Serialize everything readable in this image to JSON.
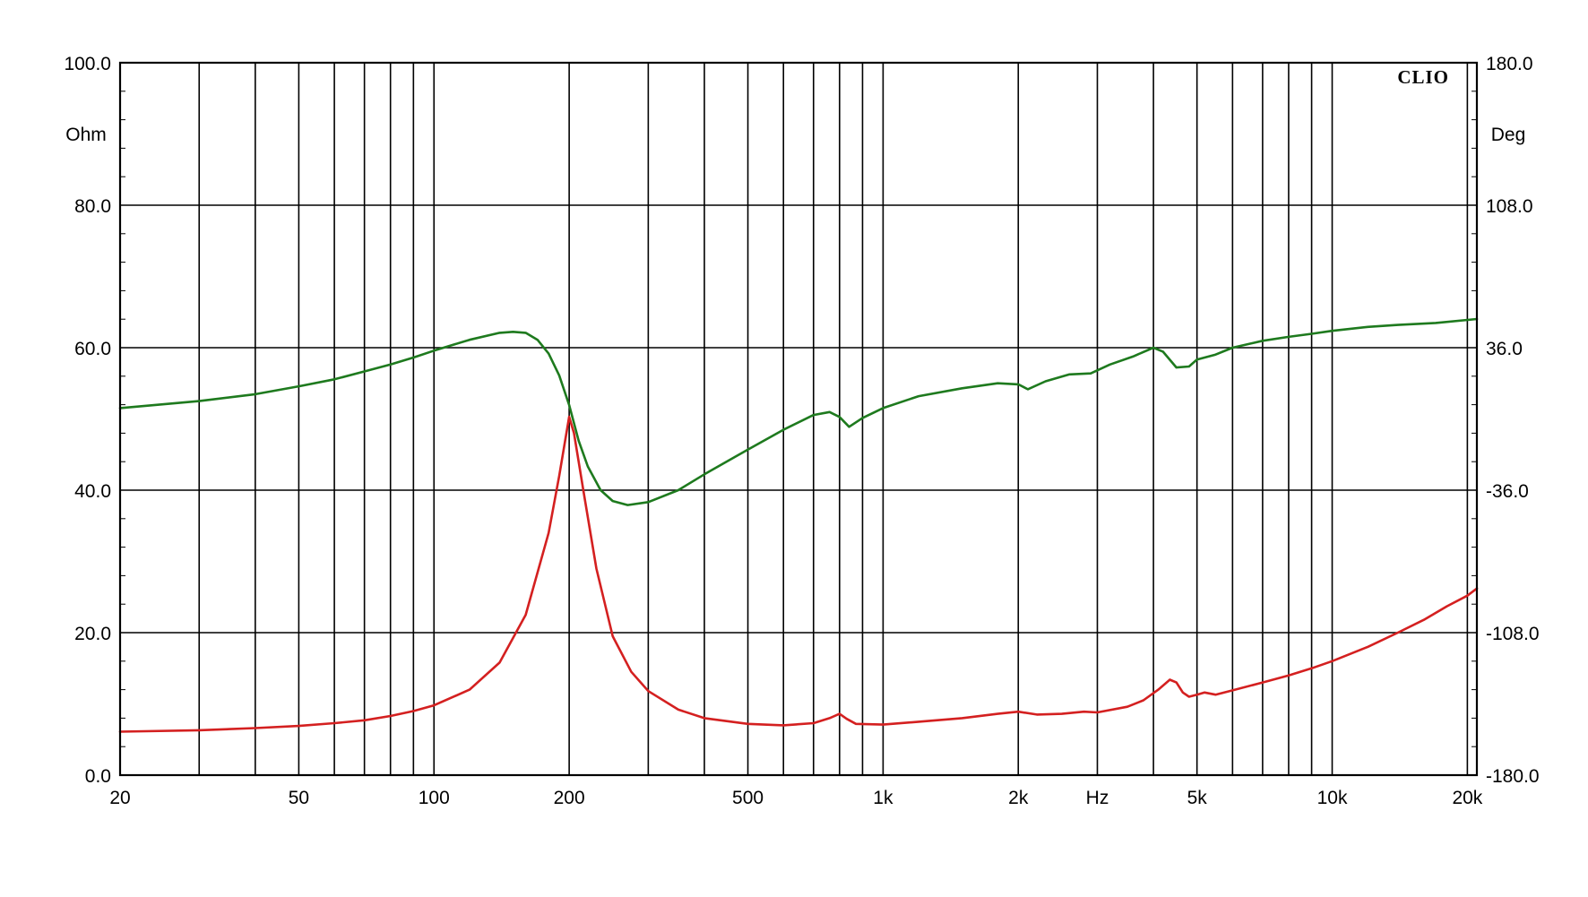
{
  "chart_data": {
    "type": "line",
    "x_scale": "log",
    "xlim": [
      20,
      21000
    ],
    "x_ticks": [
      {
        "value": 20,
        "label": "20"
      },
      {
        "value": 50,
        "label": "50"
      },
      {
        "value": 100,
        "label": "100"
      },
      {
        "value": 200,
        "label": "200"
      },
      {
        "value": 500,
        "label": "500"
      },
      {
        "value": 1000,
        "label": "1k"
      },
      {
        "value": 2000,
        "label": "2k"
      },
      {
        "value": 3000,
        "label": "Hz"
      },
      {
        "value": 5000,
        "label": "5k"
      },
      {
        "value": 10000,
        "label": "10k"
      },
      {
        "value": 20000,
        "label": "20k"
      }
    ],
    "x_gridlines": [
      30,
      40,
      50,
      60,
      70,
      80,
      90,
      100,
      200,
      300,
      400,
      500,
      600,
      700,
      800,
      900,
      1000,
      2000,
      3000,
      4000,
      5000,
      6000,
      7000,
      8000,
      9000,
      10000,
      20000
    ],
    "y_left": {
      "unit": "Ohm",
      "ylim": [
        0,
        100
      ],
      "ticks": [
        {
          "value": 0,
          "label": "0.0"
        },
        {
          "value": 20,
          "label": "20.0"
        },
        {
          "value": 40,
          "label": "40.0"
        },
        {
          "value": 60,
          "label": "60.0"
        },
        {
          "value": 80,
          "label": "80.0"
        },
        {
          "value": 100,
          "label": "100.0"
        }
      ]
    },
    "y_right": {
      "unit": "Deg",
      "ylim": [
        -180,
        180
      ],
      "ticks": [
        {
          "value": -180,
          "label": "-180.0"
        },
        {
          "value": -108,
          "label": "-108.0"
        },
        {
          "value": -36,
          "label": "-36.0"
        },
        {
          "value": 36,
          "label": "36.0"
        },
        {
          "value": 108,
          "label": "108.0"
        },
        {
          "value": 180,
          "label": "180.0"
        }
      ]
    },
    "grid": true,
    "brand_label": "CLIO",
    "series": [
      {
        "color": "#d42020",
        "axis": "left",
        "points": [
          [
            20,
            6.1
          ],
          [
            30,
            6.3
          ],
          [
            40,
            6.6
          ],
          [
            50,
            6.9
          ],
          [
            60,
            7.3
          ],
          [
            70,
            7.7
          ],
          [
            80,
            8.3
          ],
          [
            90,
            9.0
          ],
          [
            100,
            9.8
          ],
          [
            120,
            12.0
          ],
          [
            140,
            15.8
          ],
          [
            160,
            22.5
          ],
          [
            180,
            34.0
          ],
          [
            190,
            42.0
          ],
          [
            200,
            50.3
          ],
          [
            205,
            48.0
          ],
          [
            215,
            40.0
          ],
          [
            230,
            29.0
          ],
          [
            250,
            19.5
          ],
          [
            275,
            14.5
          ],
          [
            300,
            11.8
          ],
          [
            350,
            9.2
          ],
          [
            400,
            8.0
          ],
          [
            500,
            7.2
          ],
          [
            600,
            7.0
          ],
          [
            700,
            7.3
          ],
          [
            760,
            8.0
          ],
          [
            800,
            8.6
          ],
          [
            830,
            7.9
          ],
          [
            870,
            7.2
          ],
          [
            1000,
            7.1
          ],
          [
            1200,
            7.5
          ],
          [
            1500,
            8.0
          ],
          [
            1800,
            8.6
          ],
          [
            2000,
            8.9
          ],
          [
            2200,
            8.5
          ],
          [
            2500,
            8.6
          ],
          [
            2800,
            8.9
          ],
          [
            3000,
            8.8
          ],
          [
            3500,
            9.6
          ],
          [
            3800,
            10.5
          ],
          [
            4100,
            12.0
          ],
          [
            4350,
            13.4
          ],
          [
            4500,
            13.0
          ],
          [
            4650,
            11.6
          ],
          [
            4800,
            11.0
          ],
          [
            5000,
            11.3
          ],
          [
            5200,
            11.6
          ],
          [
            5500,
            11.3
          ],
          [
            6000,
            11.9
          ],
          [
            7000,
            13.0
          ],
          [
            8000,
            14.0
          ],
          [
            9000,
            15.0
          ],
          [
            10000,
            16.0
          ],
          [
            12000,
            18.0
          ],
          [
            14000,
            20.0
          ],
          [
            16000,
            21.8
          ],
          [
            18000,
            23.7
          ],
          [
            20000,
            25.2
          ],
          [
            21000,
            26.2
          ]
        ]
      },
      {
        "color": "#1e7a1e",
        "axis": "right",
        "points": [
          [
            20,
            5.5
          ],
          [
            30,
            9.0
          ],
          [
            40,
            12.5
          ],
          [
            50,
            16.5
          ],
          [
            60,
            20.0
          ],
          [
            70,
            24.0
          ],
          [
            80,
            27.5
          ],
          [
            90,
            31.0
          ],
          [
            100,
            34.5
          ],
          [
            120,
            40.0
          ],
          [
            140,
            43.5
          ],
          [
            150,
            44.0
          ],
          [
            160,
            43.5
          ],
          [
            170,
            40.0
          ],
          [
            180,
            33.0
          ],
          [
            190,
            22.0
          ],
          [
            200,
            7.0
          ],
          [
            210,
            -11.0
          ],
          [
            220,
            -24.0
          ],
          [
            235,
            -36.0
          ],
          [
            250,
            -41.5
          ],
          [
            270,
            -43.5
          ],
          [
            300,
            -42.0
          ],
          [
            350,
            -36.0
          ],
          [
            400,
            -28.0
          ],
          [
            500,
            -15.5
          ],
          [
            600,
            -5.5
          ],
          [
            700,
            2.0
          ],
          [
            760,
            3.5
          ],
          [
            800,
            1.0
          ],
          [
            840,
            -4.0
          ],
          [
            900,
            0.5
          ],
          [
            1000,
            5.5
          ],
          [
            1200,
            11.5
          ],
          [
            1500,
            15.5
          ],
          [
            1800,
            18.0
          ],
          [
            2000,
            17.5
          ],
          [
            2100,
            15.0
          ],
          [
            2300,
            19.0
          ],
          [
            2600,
            22.5
          ],
          [
            2900,
            23.0
          ],
          [
            3200,
            27.5
          ],
          [
            3600,
            31.5
          ],
          [
            4000,
            36.0
          ],
          [
            4200,
            34.0
          ],
          [
            4500,
            26.0
          ],
          [
            4800,
            26.5
          ],
          [
            5000,
            30.0
          ],
          [
            5500,
            32.5
          ],
          [
            6000,
            36.0
          ],
          [
            7000,
            39.5
          ],
          [
            8000,
            41.5
          ],
          [
            9000,
            43.0
          ],
          [
            10000,
            44.5
          ],
          [
            12000,
            46.5
          ],
          [
            14000,
            47.5
          ],
          [
            17000,
            48.5
          ],
          [
            21000,
            50.5
          ]
        ]
      }
    ]
  }
}
